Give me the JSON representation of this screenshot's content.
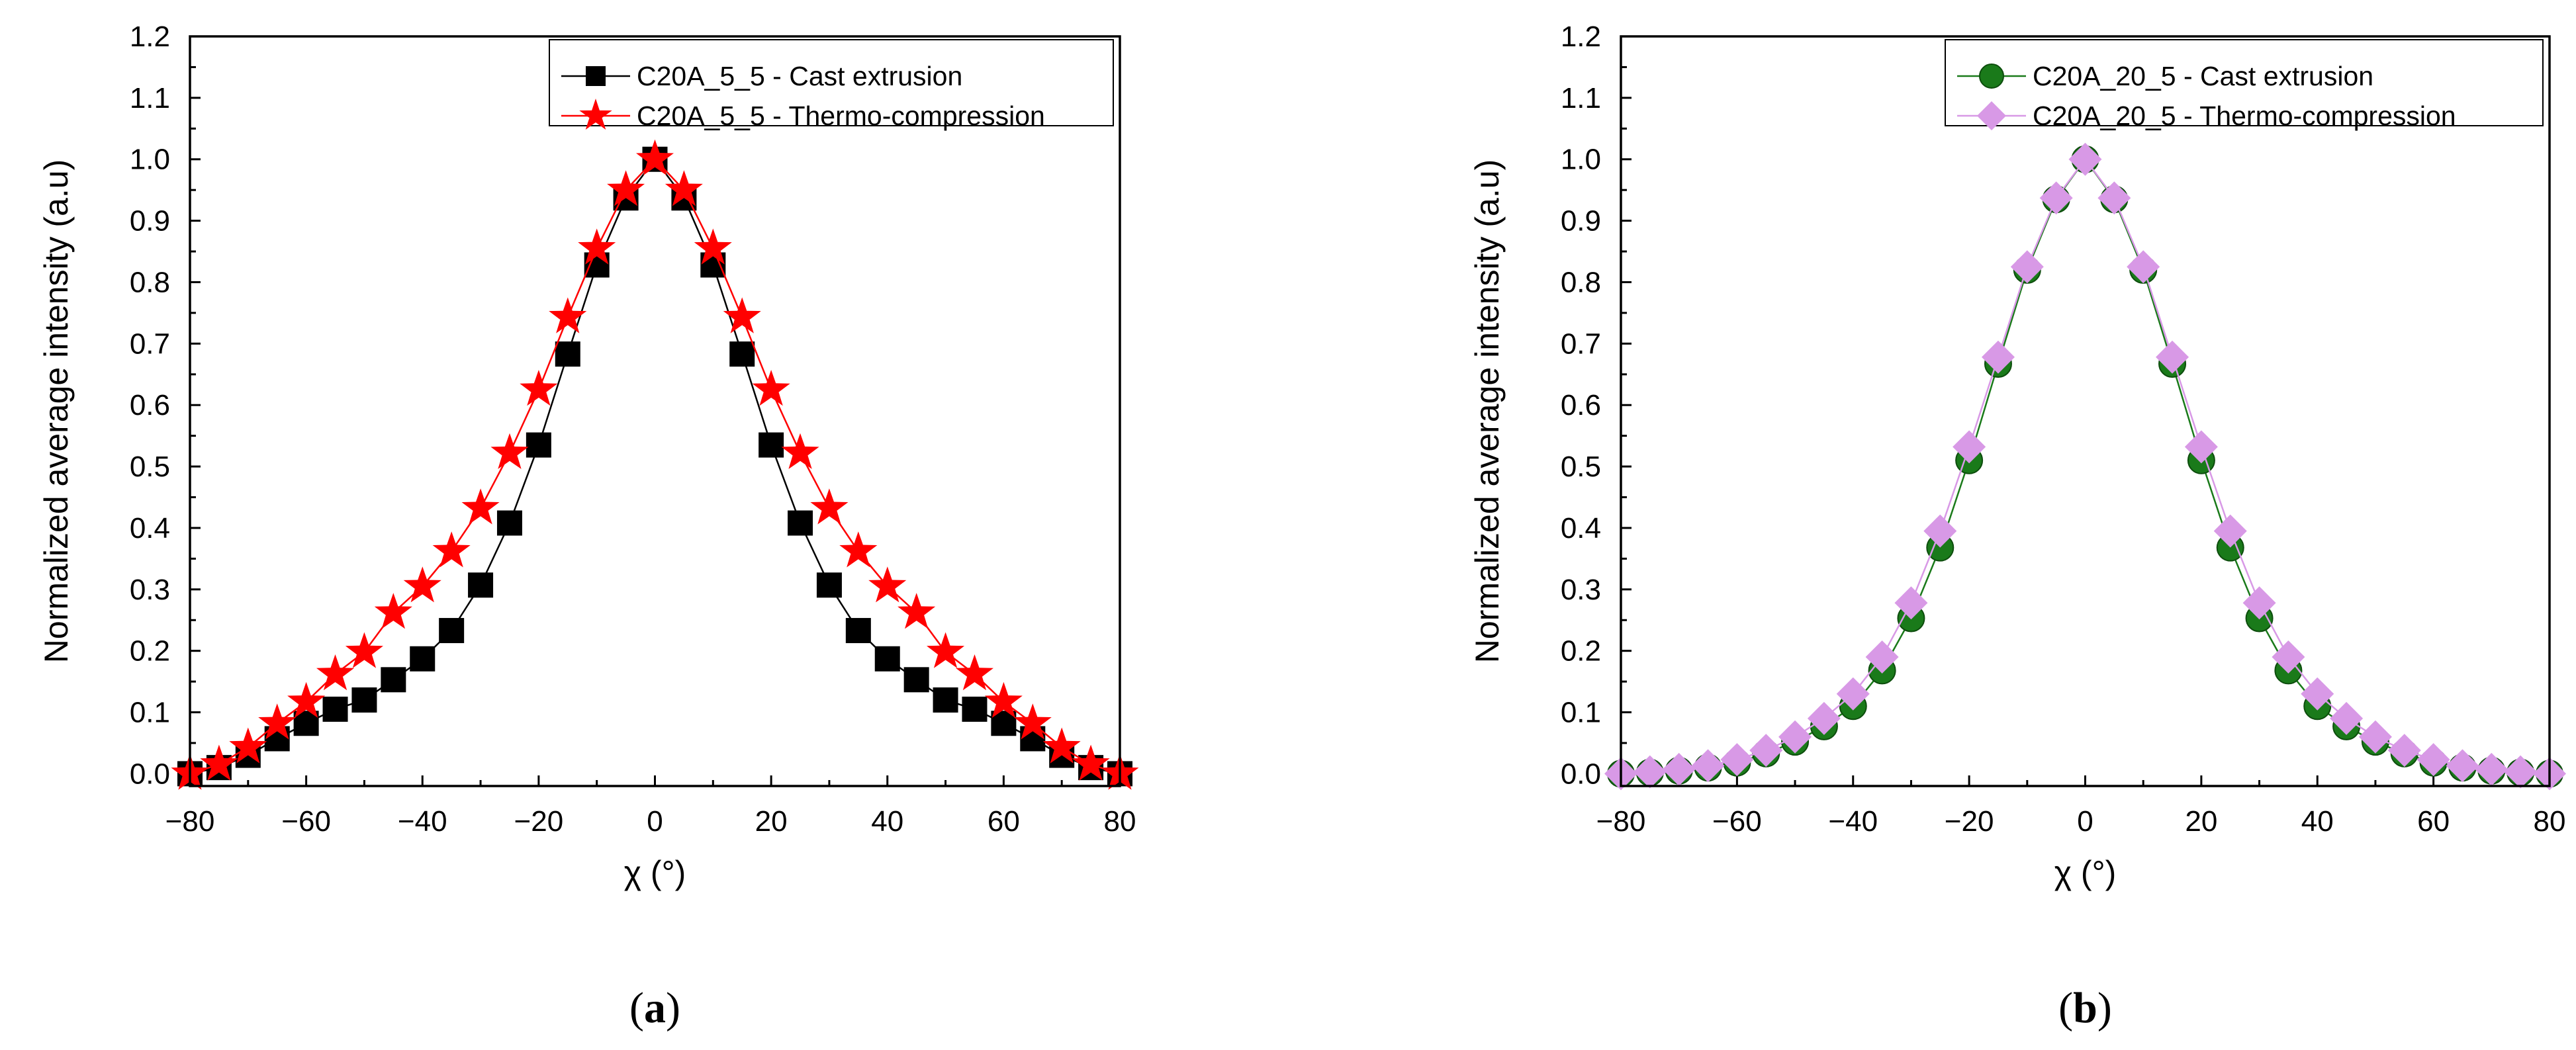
{
  "chart_data": [
    {
      "type": "line",
      "panel_label": "a",
      "xlabel": "χ (°)",
      "ylabel": "Normalized average intensity (a.u)",
      "xlim": [
        -80,
        80
      ],
      "ylim": [
        -0.02,
        1.2
      ],
      "xticks": [
        -80,
        -60,
        -40,
        -20,
        0,
        20,
        40,
        60,
        80
      ],
      "yticks": [
        0.0,
        0.1,
        0.2,
        0.3,
        0.4,
        0.5,
        0.6,
        0.7,
        0.8,
        0.9,
        1.0,
        1.1,
        1.2
      ],
      "legend_position": "top-right",
      "x": [
        -80,
        -75,
        -70,
        -65,
        -60,
        -55,
        -50,
        -45,
        -40,
        -35,
        -30,
        -25,
        -20,
        -15,
        -10,
        -5,
        0,
        5,
        10,
        15,
        20,
        25,
        30,
        35,
        40,
        45,
        50,
        55,
        60,
        65,
        70,
        75,
        80
      ],
      "series": [
        {
          "name": "C20A_5_5 - Cast extrusion",
          "marker": "square",
          "color": "#000000",
          "line_color": "#000000",
          "values": [
            0.0,
            0.01,
            0.03,
            0.057,
            0.082,
            0.105,
            0.12,
            0.153,
            0.187,
            0.233,
            0.307,
            0.408,
            0.535,
            0.683,
            0.828,
            0.937,
            1.0,
            0.937,
            0.828,
            0.683,
            0.535,
            0.408,
            0.307,
            0.233,
            0.187,
            0.153,
            0.12,
            0.105,
            0.082,
            0.057,
            0.03,
            0.01,
            0.0
          ]
        },
        {
          "name": "C20A_5_5 - Thermo-compression",
          "marker": "star",
          "color": "#ff0000",
          "line_color": "#ff0000",
          "values": [
            0.0,
            0.015,
            0.043,
            0.082,
            0.117,
            0.162,
            0.198,
            0.262,
            0.305,
            0.362,
            0.432,
            0.522,
            0.625,
            0.743,
            0.855,
            0.95,
            1.0,
            0.95,
            0.855,
            0.743,
            0.625,
            0.522,
            0.432,
            0.362,
            0.305,
            0.262,
            0.198,
            0.162,
            0.117,
            0.082,
            0.043,
            0.015,
            0.0
          ]
        }
      ]
    },
    {
      "type": "line",
      "panel_label": "b",
      "xlabel": "χ (°)",
      "ylabel": "Normalized average intensity (a.u)",
      "xlim": [
        -80,
        80
      ],
      "ylim": [
        -0.02,
        1.2
      ],
      "xticks": [
        -80,
        -60,
        -40,
        -20,
        0,
        20,
        40,
        60,
        80
      ],
      "yticks": [
        0.0,
        0.1,
        0.2,
        0.3,
        0.4,
        0.5,
        0.6,
        0.7,
        0.8,
        0.9,
        1.0,
        1.1,
        1.2
      ],
      "legend_position": "top-right",
      "x": [
        -80,
        -75,
        -70,
        -65,
        -60,
        -55,
        -50,
        -45,
        -40,
        -35,
        -30,
        -25,
        -20,
        -15,
        -10,
        -5,
        0,
        5,
        10,
        15,
        20,
        25,
        30,
        35,
        40,
        45,
        50,
        55,
        60,
        65,
        70,
        75,
        80
      ],
      "series": [
        {
          "name": "C20A_20_5 - Cast extrusion",
          "marker": "circle",
          "color": "#1a7a1a",
          "line_color": "#1a7a1a",
          "values": [
            0.0,
            0.002,
            0.005,
            0.01,
            0.018,
            0.033,
            0.052,
            0.077,
            0.11,
            0.168,
            0.253,
            0.368,
            0.51,
            0.667,
            0.82,
            0.935,
            1.0,
            0.935,
            0.82,
            0.667,
            0.51,
            0.368,
            0.253,
            0.168,
            0.11,
            0.077,
            0.052,
            0.033,
            0.018,
            0.01,
            0.005,
            0.002,
            0.0
          ]
        },
        {
          "name": "C20A_20_5 - Thermo-compression",
          "marker": "diamond",
          "color": "#d899e6",
          "line_color": "#d899e6",
          "values": [
            0.0,
            0.003,
            0.007,
            0.013,
            0.023,
            0.038,
            0.06,
            0.09,
            0.13,
            0.19,
            0.278,
            0.395,
            0.532,
            0.678,
            0.825,
            0.937,
            1.0,
            0.937,
            0.825,
            0.678,
            0.532,
            0.395,
            0.278,
            0.19,
            0.13,
            0.09,
            0.06,
            0.038,
            0.023,
            0.013,
            0.007,
            0.003,
            0.0
          ]
        }
      ]
    }
  ]
}
